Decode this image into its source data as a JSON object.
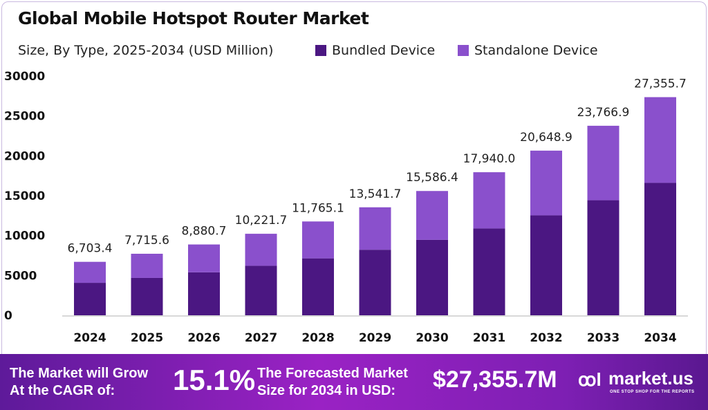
{
  "colors": {
    "bundled": "#4b1782",
    "standalone": "#8a50cc",
    "footer_bg": "#8a20bd"
  },
  "chart_data": {
    "type": "bar",
    "stacked": true,
    "title": "Global Mobile Hotspot Router Market",
    "subtitle": "Size, By Type, 2025-2034 (USD Million)",
    "categories": [
      "2024",
      "2025",
      "2026",
      "2027",
      "2028",
      "2029",
      "2030",
      "2031",
      "2032",
      "2033",
      "2034"
    ],
    "series": [
      {
        "name": "Bundled Device",
        "values": [
          4070,
          4685,
          5390,
          6205,
          7140,
          8220,
          9460,
          10890,
          12535,
          14430,
          16610
        ]
      },
      {
        "name": "Standalone Device",
        "values": [
          2633.4,
          3030.6,
          3490.7,
          4016.7,
          4625.1,
          5321.7,
          6126.4,
          7050.0,
          8113.9,
          9336.9,
          10745.7
        ]
      }
    ],
    "totals": [
      "6,703.4",
      "7,715.6",
      "8,880.7",
      "10,221.7",
      "11,765.1",
      "13,541.7",
      "15,586.4",
      "17,940.0",
      "20,648.9",
      "23,766.9",
      "27,355.7"
    ],
    "total_values": [
      6703.4,
      7715.6,
      8880.7,
      10221.7,
      11765.1,
      13541.7,
      15586.4,
      17940.0,
      20648.9,
      23766.9,
      27355.7
    ],
    "yticks": [
      "0",
      "5000",
      "10000",
      "15000",
      "20000",
      "25000",
      "30000"
    ],
    "ylim": [
      0,
      30000
    ],
    "grid": false,
    "legend": "top"
  },
  "footer": {
    "cagr_label_1": "The Market will Grow",
    "cagr_label_2": "At the CAGR of:",
    "cagr_value": "15.1%",
    "forecast_label_1": "The Forecasted Market",
    "forecast_label_2": "Size for 2034 in USD:",
    "forecast_value": "$27,355.7M",
    "brand": "market.us",
    "brand_tagline": "ONE STOP SHOP FOR THE REPORTS"
  }
}
